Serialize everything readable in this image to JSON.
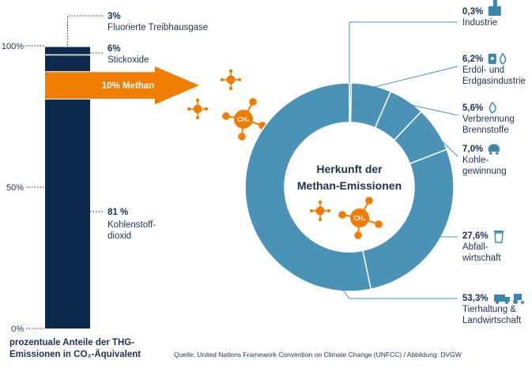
{
  "chart_data": [
    {
      "type": "stacked-bar",
      "ylim": [
        0,
        100
      ],
      "yticks": [
        "0%",
        "50%",
        "100%"
      ],
      "xlabel_lines": [
        "prozentuale Anteile der THG-",
        "Emissionen in CO₂-Äquivalent"
      ],
      "segments": [
        {
          "pct_label": "81 %",
          "name_lines": [
            "Kohlenstoff-",
            "dioxid"
          ],
          "value": 81,
          "color": "#0d2a4f"
        },
        {
          "pct_label": "10% Methan",
          "name_lines": [],
          "value": 10,
          "color": "#f07d00"
        },
        {
          "pct_label": "6%",
          "name_lines": [
            "Stickoxide"
          ],
          "value": 6,
          "color": "#0d2a4f"
        },
        {
          "pct_label": "3%",
          "name_lines": [
            "Fluorierte Treibhausgase"
          ],
          "value": 3,
          "color": "#0d2a4f"
        }
      ]
    },
    {
      "type": "donut",
      "title_lines": [
        "Herkunft der",
        "Methan-Emissionen"
      ],
      "color": "#4a93b7",
      "slices": [
        {
          "value": 0.3,
          "pct_label": "0,3%",
          "name_lines": [
            "Industrie"
          ],
          "icon": "factory-icon"
        },
        {
          "value": 6.2,
          "pct_label": "6,2%",
          "name_lines": [
            "Erdöl- und",
            "Erdgasindustrie"
          ],
          "icon": "oil-gas-icon"
        },
        {
          "value": 5.6,
          "pct_label": "5,6%",
          "name_lines": [
            "Verbrennung",
            "Brennstoffe"
          ],
          "icon": "flame-icon"
        },
        {
          "value": 7.0,
          "pct_label": "7,0%",
          "name_lines": [
            "Kohle-",
            "gewinnung"
          ],
          "icon": "coal-cart-icon"
        },
        {
          "value": 27.6,
          "pct_label": "27,6%",
          "name_lines": [
            "Abfall-",
            "wirtschaft"
          ],
          "icon": "trash-icon"
        },
        {
          "value": 53.3,
          "pct_label": "53,3%",
          "name_lines": [
            "Tierhaltung &",
            "Landwirtschaft"
          ],
          "icon": "truck-tractor-icon"
        }
      ]
    }
  ],
  "molecule_label": "CH₄",
  "source": "Quelle: United Nations Framework Convention on Climate Change (UNFCC) / Abbildung: DVGW",
  "colors": {
    "navy": "#0d2a4f",
    "orange": "#f07d00",
    "teal": "#4a93b7",
    "icon": "#3b86ad"
  }
}
